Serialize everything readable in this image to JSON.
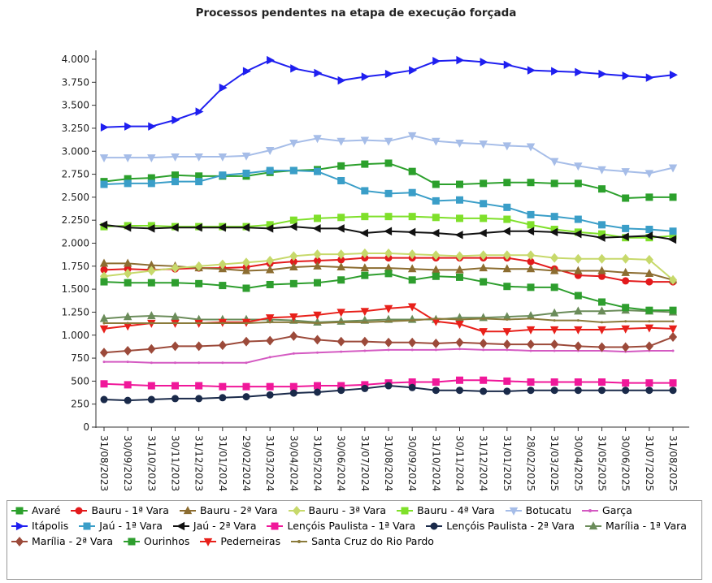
{
  "chart_data": {
    "type": "line",
    "title": "Processos pendentes na etapa de execução forçada",
    "categories": [
      "31/08/2023",
      "30/09/2023",
      "31/10/2023",
      "30/11/2023",
      "31/12/2023",
      "31/01/2024",
      "29/02/2024",
      "31/03/2024",
      "30/04/2024",
      "31/05/2024",
      "30/06/2024",
      "31/07/2024",
      "31/08/2024",
      "30/09/2024",
      "31/10/2024",
      "30/11/2024",
      "31/12/2024",
      "31/01/2025",
      "28/02/2025",
      "31/03/2025",
      "30/04/2025",
      "31/05/2025",
      "30/06/2025",
      "31/07/2025",
      "31/08/2025"
    ],
    "ylim": [
      0,
      4000
    ],
    "yticks": [
      0,
      250,
      500,
      750,
      {
        "value": 1000,
        "label": "1.000"
      },
      {
        "value": 1250,
        "label": "1.250"
      },
      {
        "value": 1500,
        "label": "1.500"
      },
      {
        "value": 1750,
        "label": "1.750"
      },
      {
        "value": 2000,
        "label": "2.000"
      },
      {
        "value": 2250,
        "label": "2.250"
      },
      {
        "value": 2500,
        "label": "2.500"
      },
      {
        "value": 2750,
        "label": "2.750"
      },
      {
        "value": 3000,
        "label": "3.000"
      },
      {
        "value": 3250,
        "label": "3.250"
      },
      {
        "value": 3500,
        "label": "3.500"
      },
      {
        "value": 3750,
        "label": "3.750"
      },
      {
        "value": 4000,
        "label": "4.000"
      }
    ],
    "grid": false,
    "legend": "bottom",
    "series": [
      {
        "name": "Avaré",
        "color": "#2ca02c",
        "marker": "square",
        "values": [
          2670,
          2700,
          2710,
          2740,
          2730,
          2730,
          2730,
          2770,
          2790,
          2800,
          2840,
          2860,
          2870,
          2780,
          2640,
          2640,
          2650,
          2660,
          2660,
          2650,
          2650,
          2590,
          2490,
          2500,
          2500
        ]
      },
      {
        "name": "Bauru - 1ª Vara",
        "color": "#e31a1c",
        "marker": "circle",
        "values": [
          1710,
          1720,
          1710,
          1720,
          1730,
          1730,
          1740,
          1780,
          1800,
          1810,
          1820,
          1840,
          1840,
          1840,
          1840,
          1840,
          1840,
          1840,
          1800,
          1720,
          1650,
          1640,
          1590,
          1580,
          1580
        ]
      },
      {
        "name": "Bauru - 2ª Vara",
        "color": "#8c6d31",
        "marker": "triangle-up",
        "values": [
          1780,
          1780,
          1760,
          1750,
          1730,
          1720,
          1700,
          1710,
          1740,
          1750,
          1740,
          1730,
          1730,
          1720,
          1710,
          1710,
          1730,
          1720,
          1720,
          1700,
          1700,
          1700,
          1680,
          1670,
          1600
        ]
      },
      {
        "name": "Bauru - 3ª Vara",
        "color": "#c7d96b",
        "marker": "diamond",
        "values": [
          1640,
          1670,
          1700,
          1730,
          1750,
          1770,
          1790,
          1810,
          1860,
          1880,
          1880,
          1890,
          1890,
          1880,
          1870,
          1860,
          1870,
          1870,
          1870,
          1840,
          1830,
          1830,
          1830,
          1820,
          1600
        ]
      },
      {
        "name": "Bauru - 4ª Vara",
        "color": "#7fe02a",
        "marker": "square",
        "values": [
          2180,
          2190,
          2190,
          2180,
          2180,
          2180,
          2180,
          2200,
          2250,
          2270,
          2280,
          2290,
          2290,
          2290,
          2280,
          2270,
          2270,
          2260,
          2200,
          2150,
          2120,
          2100,
          2060,
          2060,
          2080
        ]
      },
      {
        "name": "Botucatu",
        "color": "#a6bde8",
        "marker": "triangle-down",
        "values": [
          2930,
          2930,
          2930,
          2940,
          2940,
          2940,
          2950,
          3010,
          3090,
          3140,
          3110,
          3120,
          3110,
          3170,
          3110,
          3090,
          3080,
          3060,
          3050,
          2890,
          2840,
          2800,
          2780,
          2760,
          2820
        ]
      },
      {
        "name": "Garça",
        "color": "#d45ac2",
        "marker": "none",
        "values": [
          710,
          710,
          700,
          700,
          700,
          700,
          700,
          760,
          800,
          810,
          820,
          830,
          840,
          840,
          840,
          850,
          840,
          840,
          830,
          830,
          830,
          830,
          820,
          830,
          830
        ]
      },
      {
        "name": "Itápolis",
        "color": "#1f1ff0",
        "marker": "triangle-right",
        "values": [
          3260,
          3270,
          3270,
          3340,
          3430,
          3690,
          3870,
          3990,
          3900,
          3850,
          3770,
          3810,
          3840,
          3880,
          3980,
          3990,
          3970,
          3940,
          3880,
          3870,
          3860,
          3840,
          3820,
          3800,
          3830
        ]
      },
      {
        "name": "Jaú - 1ª Vara",
        "color": "#3a9ec8",
        "marker": "square",
        "values": [
          2640,
          2650,
          2650,
          2670,
          2670,
          2740,
          2760,
          2790,
          2790,
          2780,
          2680,
          2570,
          2540,
          2550,
          2460,
          2470,
          2430,
          2390,
          2310,
          2290,
          2260,
          2200,
          2160,
          2150,
          2130
        ]
      },
      {
        "name": "Jaú - 2ª Vara",
        "color": "#111111",
        "marker": "triangle-left",
        "values": [
          2200,
          2170,
          2160,
          2170,
          2170,
          2170,
          2170,
          2160,
          2180,
          2160,
          2160,
          2110,
          2130,
          2120,
          2110,
          2090,
          2110,
          2130,
          2130,
          2120,
          2100,
          2060,
          2070,
          2080,
          2040
        ]
      },
      {
        "name": "Lençóis Paulista - 1ª Vara",
        "color": "#f0189a",
        "marker": "square",
        "values": [
          470,
          460,
          450,
          450,
          450,
          440,
          440,
          440,
          440,
          450,
          450,
          460,
          480,
          490,
          490,
          510,
          510,
          500,
          490,
          490,
          490,
          490,
          480,
          480,
          480
        ]
      },
      {
        "name": "Lençóis Paulista - 2ª Vara",
        "color": "#1a2a4a",
        "marker": "circle",
        "values": [
          300,
          290,
          300,
          310,
          310,
          320,
          330,
          350,
          370,
          380,
          400,
          420,
          450,
          430,
          400,
          400,
          390,
          390,
          400,
          400,
          400,
          400,
          400,
          400,
          400
        ]
      },
      {
        "name": "Marília - 1ª Vara",
        "color": "#6b8c5a",
        "marker": "triangle-up",
        "values": [
          1180,
          1200,
          1210,
          1200,
          1170,
          1170,
          1170,
          1170,
          1160,
          1140,
          1150,
          1160,
          1170,
          1170,
          1170,
          1190,
          1190,
          1200,
          1210,
          1240,
          1260,
          1260,
          1270,
          1260,
          1250
        ]
      },
      {
        "name": "Marília - 2ª Vara",
        "color": "#9c4a3a",
        "marker": "diamond",
        "values": [
          810,
          830,
          850,
          880,
          880,
          890,
          930,
          940,
          990,
          950,
          930,
          930,
          920,
          920,
          910,
          920,
          910,
          900,
          900,
          900,
          880,
          870,
          870,
          880,
          980
        ]
      },
      {
        "name": "Ourinhos",
        "color": "#2e9e2e",
        "marker": "square",
        "values": [
          1580,
          1570,
          1570,
          1570,
          1560,
          1540,
          1510,
          1550,
          1560,
          1570,
          1600,
          1650,
          1670,
          1600,
          1640,
          1630,
          1580,
          1530,
          1520,
          1520,
          1430,
          1360,
          1300,
          1270,
          1270
        ]
      },
      {
        "name": "Pederneiras",
        "color": "#e8201a",
        "marker": "triangle-down",
        "values": [
          1070,
          1100,
          1130,
          1130,
          1130,
          1140,
          1140,
          1190,
          1200,
          1220,
          1250,
          1260,
          1290,
          1310,
          1150,
          1120,
          1040,
          1040,
          1060,
          1060,
          1060,
          1060,
          1070,
          1080,
          1070
        ]
      },
      {
        "name": "Santa Cruz do Rio Pardo",
        "color": "#8a7a3a",
        "marker": "none",
        "values": [
          1130,
          1130,
          1130,
          1130,
          1130,
          1130,
          1130,
          1140,
          1140,
          1130,
          1140,
          1140,
          1150,
          1160,
          1180,
          1170,
          1180,
          1170,
          1180,
          1160,
          1160,
          1140,
          1150,
          1150,
          1150
        ]
      }
    ]
  }
}
